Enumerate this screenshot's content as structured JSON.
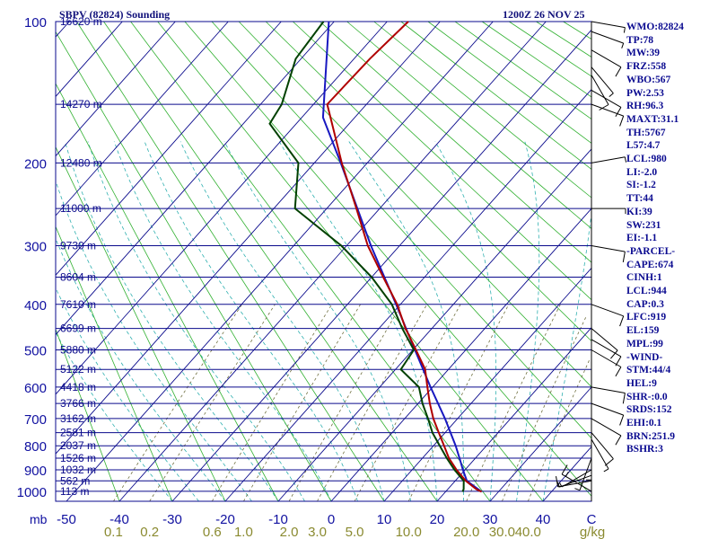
{
  "header": {
    "station": "SBPV (82824) Sounding",
    "time": "1200Z 26 NOV 25"
  },
  "chart_data": {
    "type": "skew-t log-p sounding",
    "pressure_axis": {
      "label": "mb",
      "ticks": [
        100,
        200,
        300,
        400,
        500,
        600,
        700,
        800,
        900,
        1000
      ]
    },
    "temperature_axis": {
      "ticks": [
        "-50",
        "-40",
        "-30",
        "-20",
        "-10",
        "0",
        "10",
        "20",
        "30",
        "40",
        "C"
      ]
    },
    "mixing_ratio_axis": {
      "ticks": [
        "0.1",
        "0.2",
        "0.6",
        "1.0",
        "2.0",
        "3.0",
        "5.0",
        "10.0",
        "20.0",
        "30.0",
        "40.0",
        "g/kg"
      ]
    },
    "height_levels": [
      {
        "p": 100,
        "label": "16620 m"
      },
      {
        "p": 150,
        "label": "14270 m"
      },
      {
        "p": 200,
        "label": "12480 m"
      },
      {
        "p": 250,
        "label": "11000 m"
      },
      {
        "p": 300,
        "label": "9730 m"
      },
      {
        "p": 350,
        "label": "8604 m"
      },
      {
        "p": 400,
        "label": "7610 m"
      },
      {
        "p": 450,
        "label": "6699 m"
      },
      {
        "p": 500,
        "label": "5880 m"
      },
      {
        "p": 550,
        "label": "5122 m"
      },
      {
        "p": 600,
        "label": "4418 m"
      },
      {
        "p": 650,
        "label": "3766 m"
      },
      {
        "p": 700,
        "label": "3162 m"
      },
      {
        "p": 750,
        "label": "2581 m"
      },
      {
        "p": 800,
        "label": "2037 m"
      },
      {
        "p": 850,
        "label": "1526 m"
      },
      {
        "p": 900,
        "label": "1032 m"
      },
      {
        "p": 950,
        "label": "562 m"
      },
      {
        "p": 1000,
        "label": "113 m"
      }
    ],
    "temperature_profile": [
      [
        1002,
        26.8
      ],
      [
        990,
        25.4
      ],
      [
        950,
        22.0
      ],
      [
        900,
        18.4
      ],
      [
        850,
        15.0
      ],
      [
        800,
        12.0
      ],
      [
        750,
        8.8
      ],
      [
        700,
        5.4
      ],
      [
        650,
        2.2
      ],
      [
        600,
        -1.0
      ],
      [
        550,
        -4.4
      ],
      [
        500,
        -9.4
      ],
      [
        450,
        -15.0
      ],
      [
        400,
        -20.6
      ],
      [
        350,
        -27.8
      ],
      [
        300,
        -36.0
      ],
      [
        250,
        -44.4
      ],
      [
        200,
        -54.8
      ],
      [
        150,
        -67.4
      ],
      [
        120,
        -67.0
      ],
      [
        100,
        -66.0
      ]
    ],
    "dewpoint_profile": [
      [
        1002,
        23.2
      ],
      [
        990,
        23.0
      ],
      [
        950,
        21.6
      ],
      [
        900,
        18.0
      ],
      [
        850,
        14.6
      ],
      [
        800,
        11.2
      ],
      [
        750,
        7.6
      ],
      [
        700,
        4.4
      ],
      [
        650,
        0.8
      ],
      [
        600,
        -2.6
      ],
      [
        550,
        -9.0
      ],
      [
        500,
        -9.8
      ],
      [
        450,
        -15.6
      ],
      [
        400,
        -21.6
      ],
      [
        350,
        -30.0
      ],
      [
        300,
        -41.0
      ],
      [
        250,
        -56.0
      ],
      [
        200,
        -63.0
      ],
      [
        165,
        -75.0
      ],
      [
        150,
        -76.0
      ],
      [
        120,
        -81.0
      ],
      [
        100,
        -82.0
      ]
    ],
    "parcel_profile": [
      [
        1002,
        26.8
      ],
      [
        950,
        22.2
      ],
      [
        900,
        19.6
      ],
      [
        850,
        17.0
      ],
      [
        800,
        14.2
      ],
      [
        700,
        7.6
      ],
      [
        600,
        -0.4
      ],
      [
        500,
        -9.6
      ],
      [
        400,
        -20.8
      ],
      [
        300,
        -35.4
      ],
      [
        200,
        -55.0
      ],
      [
        160,
        -66.0
      ],
      [
        100,
        -81.0
      ]
    ],
    "wind_barbs": [
      {
        "p": 1000,
        "direction": 300,
        "speed": 15
      },
      {
        "p": 950,
        "direction": 260,
        "speed": 10
      },
      {
        "p": 925,
        "direction": 250,
        "speed": 5
      },
      {
        "p": 900,
        "direction": 240,
        "speed": 5
      },
      {
        "p": 850,
        "direction": 200,
        "speed": 5
      },
      {
        "p": 800,
        "direction": 180,
        "speed": 5
      },
      {
        "p": 775,
        "direction": 150,
        "speed": 5
      },
      {
        "p": 750,
        "direction": 140,
        "speed": 10
      },
      {
        "p": 700,
        "direction": 120,
        "speed": 10
      },
      {
        "p": 650,
        "direction": 110,
        "speed": 10
      },
      {
        "p": 600,
        "direction": 100,
        "speed": 10
      },
      {
        "p": 500,
        "direction": 120,
        "speed": 10
      },
      {
        "p": 475,
        "direction": 120,
        "speed": 10
      },
      {
        "p": 450,
        "direction": 130,
        "speed": 10
      },
      {
        "p": 400,
        "direction": 110,
        "speed": 10
      },
      {
        "p": 300,
        "direction": 100,
        "speed": 10
      },
      {
        "p": 250,
        "direction": 90,
        "speed": 5
      },
      {
        "p": 200,
        "direction": 80,
        "speed": 5
      },
      {
        "p": 150,
        "direction": 110,
        "speed": 10
      },
      {
        "p": 140,
        "direction": 120,
        "speed": 10
      },
      {
        "p": 130,
        "direction": 150,
        "speed": 10
      },
      {
        "p": 125,
        "direction": 140,
        "speed": 5
      },
      {
        "p": 115,
        "direction": 120,
        "speed": 10
      },
      {
        "p": 105,
        "direction": 110,
        "speed": 5
      },
      {
        "p": 100,
        "direction": 100,
        "speed": 5
      }
    ],
    "series_colors": {
      "temperature": "#b00000",
      "dewpoint": "#004000",
      "parcel": "#1818c0"
    },
    "grid_colors": {
      "isobar": "#0a0a8c",
      "isotherm": "#0a0a8c",
      "dry_adiabat": "#30b030",
      "moist_adiabat": "#30b0b0",
      "mixing_ratio": "#707040"
    }
  },
  "indices": [
    "WMO:82824",
    "TP:78",
    "MW:39",
    "FRZ:558",
    "WBO:567",
    "PW:2.53",
    "RH:96.3",
    "MAXT:31.1",
    "TH:5767",
    "L57:4.7",
    "LCL:980",
    "LI:-2.0",
    "SI:-1.2",
    "TT:44",
    "KI:39",
    "SW:231",
    "EI:-1.1",
    "-PARCEL-",
    "CAPE:674",
    "CINH:1",
    "LCL:944",
    "CAP:0.3",
    "LFC:919",
    "EL:159",
    "MPL:99",
    "-WIND-",
    "STM:44/4",
    "HEL:9",
    "SHR-:0.0",
    "SRDS:152",
    "EHI:0.1",
    "BRN:251.9",
    "BSHR:3"
  ]
}
